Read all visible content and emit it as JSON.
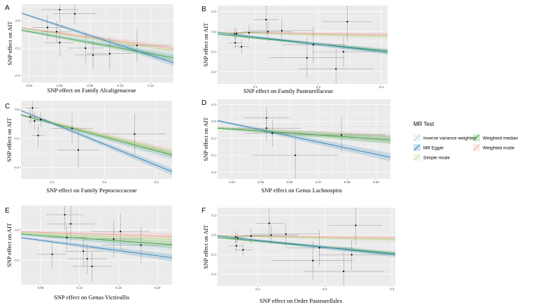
{
  "legend": {
    "title": "MR Test",
    "entries": [
      {
        "key": "ivw",
        "label": "Inverse variance weighted",
        "color": "#a6cee3"
      },
      {
        "key": "egger",
        "label": "MR Egger",
        "color": "#1f78b4"
      },
      {
        "key": "simple",
        "label": "Simple mode",
        "color": "#b2df8a"
      },
      {
        "key": "wmedian",
        "label": "Weighted median",
        "color": "#33a02c"
      },
      {
        "key": "wmode",
        "label": "Weighted mode",
        "color": "#fb9a99"
      }
    ]
  },
  "chart_data": [
    {
      "panel": "A",
      "type": "scatter",
      "xlabel": "SNP effect on Family Alcaligenaceae",
      "ylabel": "SNP effect on AIT",
      "xlim": [
        0.035,
        0.135
      ],
      "ylim": [
        -0.45,
        0.12
      ],
      "xticks": [
        0.04,
        0.06,
        0.08,
        0.1,
        0.12
      ],
      "xtick_labels": [
        "0.04",
        "0.06",
        "0.08",
        "0.10",
        "0.12"
      ],
      "yticks": [
        0.0,
        -0.2,
        -0.4
      ],
      "ytick_labels": [
        "0.0",
        "-0.2",
        "-0.4"
      ],
      "points": [
        {
          "x": 0.06,
          "y": 0.08,
          "xerr": 0.012,
          "yerr": 0.1
        },
        {
          "x": 0.07,
          "y": 0.05,
          "xerr": 0.014,
          "yerr": 0.08
        },
        {
          "x": 0.052,
          "y": -0.05,
          "xerr": 0.01,
          "yerr": 0.09
        },
        {
          "x": 0.058,
          "y": -0.08,
          "xerr": 0.01,
          "yerr": 0.08
        },
        {
          "x": 0.06,
          "y": -0.16,
          "xerr": 0.01,
          "yerr": 0.1
        },
        {
          "x": 0.077,
          "y": -0.2,
          "xerr": 0.012,
          "yerr": 0.11
        },
        {
          "x": 0.082,
          "y": -0.25,
          "xerr": 0.012,
          "yerr": 0.1
        },
        {
          "x": 0.093,
          "y": -0.24,
          "xerr": 0.015,
          "yerr": 0.12
        },
        {
          "x": 0.111,
          "y": -0.18,
          "xerr": 0.022,
          "yerr": 0.12
        }
      ],
      "lines": {
        "ivw": [
          0.0,
          -1.9
        ],
        "egger": [
          0.18,
          -3.6
        ],
        "simple": [
          0.0,
          -1.6
        ],
        "wmedian": [
          0.0,
          -2.0
        ],
        "wmode": [
          0.0,
          -1.5
        ]
      }
    },
    {
      "panel": "B",
      "type": "scatter",
      "xlabel": "SNP effect on Family Pasteurellaceae",
      "ylabel": "SNP effect on AIT",
      "xlim": [
        0.04,
        0.31
      ],
      "ylim": [
        -0.52,
        0.26
      ],
      "xticks": [
        0.1,
        0.2,
        0.3
      ],
      "xtick_labels": [
        "0.1",
        "0.2",
        "0.3"
      ],
      "yticks": [
        0.2,
        0.0,
        -0.2,
        -0.4
      ],
      "ytick_labels": [
        "0.2",
        "0.0",
        "-0.2",
        "-0.4"
      ],
      "points": [
        {
          "x": 0.067,
          "y": -0.02,
          "xerr": 0.012,
          "yerr": 0.06
        },
        {
          "x": 0.07,
          "y": -0.02,
          "xerr": 0.01,
          "yerr": 0.05
        },
        {
          "x": 0.068,
          "y": -0.11,
          "xerr": 0.01,
          "yerr": 0.06
        },
        {
          "x": 0.078,
          "y": -0.15,
          "xerr": 0.012,
          "yerr": 0.07
        },
        {
          "x": 0.09,
          "y": -0.01,
          "xerr": 0.02,
          "yerr": 0.08
        },
        {
          "x": 0.117,
          "y": 0.12,
          "xerr": 0.02,
          "yerr": 0.15
        },
        {
          "x": 0.12,
          "y": 0.0,
          "xerr": 0.04,
          "yerr": 0.1
        },
        {
          "x": 0.142,
          "y": 0.01,
          "xerr": 0.05,
          "yerr": 0.12
        },
        {
          "x": 0.182,
          "y": -0.26,
          "xerr": 0.06,
          "yerr": 0.2
        },
        {
          "x": 0.192,
          "y": -0.13,
          "xerr": 0.05,
          "yerr": 0.18
        },
        {
          "x": 0.228,
          "y": -0.37,
          "xerr": 0.06,
          "yerr": 0.2
        },
        {
          "x": 0.24,
          "y": -0.2,
          "xerr": 0.05,
          "yerr": 0.15
        },
        {
          "x": 0.246,
          "y": 0.1,
          "xerr": 0.04,
          "yerr": 0.2
        }
      ],
      "lines": {
        "ivw": [
          0.0,
          -0.65
        ],
        "egger": [
          0.02,
          -0.72
        ],
        "simple": [
          0.0,
          -0.15
        ],
        "wmedian": [
          0.0,
          -0.62
        ],
        "wmode": [
          0.0,
          -0.1
        ]
      }
    },
    {
      "panel": "C",
      "type": "scatter",
      "xlabel": "SNP effect on Family Peptococcaceae",
      "ylabel": "SNP effect on AIT",
      "xlim": [
        0.04,
        0.33
      ],
      "ylim": [
        -0.48,
        0.06
      ],
      "xticks": [
        0.1,
        0.2,
        0.3
      ],
      "xtick_labels": [
        "0.1",
        "0.2",
        "0.3"
      ],
      "yticks": [
        0.0,
        -0.2,
        -0.4
      ],
      "ytick_labels": [
        "0.0",
        "-0.2",
        "-0.4"
      ],
      "points": [
        {
          "x": 0.062,
          "y": 0.01,
          "xerr": 0.012,
          "yerr": 0.05
        },
        {
          "x": 0.058,
          "y": -0.05,
          "xerr": 0.01,
          "yerr": 0.05
        },
        {
          "x": 0.066,
          "y": -0.08,
          "xerr": 0.012,
          "yerr": 0.06
        },
        {
          "x": 0.078,
          "y": -0.07,
          "xerr": 0.012,
          "yerr": 0.05
        },
        {
          "x": 0.073,
          "y": -0.18,
          "xerr": 0.012,
          "yerr": 0.08
        },
        {
          "x": 0.138,
          "y": -0.13,
          "xerr": 0.04,
          "yerr": 0.1
        },
        {
          "x": 0.15,
          "y": -0.28,
          "xerr": 0.04,
          "yerr": 0.13
        },
        {
          "x": 0.258,
          "y": -0.17,
          "xerr": 0.06,
          "yerr": 0.14
        }
      ],
      "lines": {
        "ivw": [
          0.0,
          -1.0
        ],
        "egger": [
          0.05,
          -1.45
        ],
        "simple": [
          0.0,
          -0.9
        ],
        "wmedian": [
          0.0,
          -0.95
        ],
        "wmode": [
          0.0,
          -0.9
        ]
      }
    },
    {
      "panel": "D",
      "type": "scatter",
      "xlabel": "SNP effect on Genus Lachnospira",
      "ylabel": "SNP effect on AIT",
      "xlim": [
        0.035,
        0.095
      ],
      "ylim": [
        -0.34,
        0.13
      ],
      "xticks": [
        0.04,
        0.05,
        0.06,
        0.07,
        0.08,
        0.09
      ],
      "xtick_labels": [
        "0.04",
        "0.05",
        "0.06",
        "0.07",
        "0.08",
        "0.09"
      ],
      "yticks": [
        0.1,
        0.0,
        -0.1,
        -0.2,
        -0.3
      ],
      "ytick_labels": [
        "0.1",
        "0.0",
        "-0.1",
        "-0.2",
        "-0.3"
      ],
      "points": [
        {
          "x": 0.052,
          "y": 0.02,
          "xerr": 0.008,
          "yerr": 0.07
        },
        {
          "x": 0.052,
          "y": -0.04,
          "xerr": 0.012,
          "yerr": 0.08
        },
        {
          "x": 0.054,
          "y": -0.07,
          "xerr": 0.01,
          "yerr": 0.08
        },
        {
          "x": 0.062,
          "y": -0.2,
          "xerr": 0.015,
          "yerr": 0.14
        },
        {
          "x": 0.078,
          "y": -0.08,
          "xerr": 0.015,
          "yerr": 0.1
        }
      ],
      "lines": {
        "ivw": [
          0.0,
          -1.1
        ],
        "egger": [
          0.13,
          -3.6
        ],
        "simple": [
          0.0,
          -1.05
        ],
        "wmedian": [
          0.0,
          -1.15
        ],
        "wmode": [
          0.0,
          -1.05
        ]
      }
    },
    {
      "panel": "E",
      "type": "scatter",
      "xlabel": "SNP effect on Genus Victivallis",
      "ylabel": "SNP effect on AIT",
      "xlim": [
        0.06,
        0.215
      ],
      "ylim": [
        -0.36,
        0.16
      ],
      "xticks": [
        0.08,
        0.12,
        0.16,
        0.2
      ],
      "xtick_labels": [
        "0.08",
        "0.12",
        "0.16",
        "0.20"
      ],
      "yticks": [
        0.0,
        -0.2
      ],
      "ytick_labels": [
        "0.0",
        "-0.2"
      ],
      "points": [
        {
          "x": 0.105,
          "y": 0.1,
          "xerr": 0.02,
          "yerr": 0.1
        },
        {
          "x": 0.111,
          "y": 0.04,
          "xerr": 0.025,
          "yerr": 0.12
        },
        {
          "x": 0.107,
          "y": -0.05,
          "xerr": 0.02,
          "yerr": 0.08
        },
        {
          "x": 0.092,
          "y": -0.16,
          "xerr": 0.015,
          "yerr": 0.09
        },
        {
          "x": 0.124,
          "y": -0.14,
          "xerr": 0.02,
          "yerr": 0.1
        },
        {
          "x": 0.128,
          "y": -0.19,
          "xerr": 0.02,
          "yerr": 0.1
        },
        {
          "x": 0.133,
          "y": -0.24,
          "xerr": 0.02,
          "yerr": 0.1
        },
        {
          "x": 0.155,
          "y": -0.06,
          "xerr": 0.03,
          "yerr": 0.12
        },
        {
          "x": 0.162,
          "y": -0.01,
          "xerr": 0.03,
          "yerr": 0.12
        },
        {
          "x": 0.183,
          "y": -0.1,
          "xerr": 0.04,
          "yerr": 0.12
        }
      ],
      "lines": {
        "ivw": [
          0.0,
          -0.55
        ],
        "egger": [
          0.0,
          -0.85
        ],
        "simple": [
          0.0,
          -0.3
        ],
        "wmedian": [
          0.0,
          -0.45
        ],
        "wmode": [
          0.0,
          -0.2
        ]
      }
    },
    {
      "panel": "F",
      "type": "scatter",
      "xlabel": "SNP effect on Order Pasteurellales",
      "ylabel": "SNP effect on AIT",
      "xlim": [
        0.04,
        0.305
      ],
      "ylim": [
        -0.52,
        0.28
      ],
      "xticks": [
        0.1,
        0.2,
        0.3
      ],
      "xtick_labels": [
        "0.1",
        "0.2",
        "0.3"
      ],
      "yticks": [
        0.2,
        0.0,
        -0.2,
        -0.4
      ],
      "ytick_labels": [
        "0.2",
        "0.0",
        "-0.2",
        "-0.4"
      ],
      "points": [
        {
          "x": 0.067,
          "y": -0.02,
          "xerr": 0.012,
          "yerr": 0.06
        },
        {
          "x": 0.07,
          "y": -0.03,
          "xerr": 0.01,
          "yerr": 0.05
        },
        {
          "x": 0.068,
          "y": -0.11,
          "xerr": 0.01,
          "yerr": 0.06
        },
        {
          "x": 0.078,
          "y": -0.15,
          "xerr": 0.012,
          "yerr": 0.07
        },
        {
          "x": 0.09,
          "y": -0.01,
          "xerr": 0.02,
          "yerr": 0.08
        },
        {
          "x": 0.117,
          "y": 0.12,
          "xerr": 0.02,
          "yerr": 0.15
        },
        {
          "x": 0.12,
          "y": 0.0,
          "xerr": 0.04,
          "yerr": 0.1
        },
        {
          "x": 0.142,
          "y": 0.01,
          "xerr": 0.05,
          "yerr": 0.12
        },
        {
          "x": 0.182,
          "y": -0.26,
          "xerr": 0.06,
          "yerr": 0.2
        },
        {
          "x": 0.192,
          "y": -0.13,
          "xerr": 0.05,
          "yerr": 0.18
        },
        {
          "x": 0.228,
          "y": -0.37,
          "xerr": 0.06,
          "yerr": 0.2
        },
        {
          "x": 0.24,
          "y": -0.2,
          "xerr": 0.05,
          "yerr": 0.15
        },
        {
          "x": 0.246,
          "y": 0.1,
          "xerr": 0.04,
          "yerr": 0.2
        }
      ],
      "lines": {
        "ivw": [
          0.0,
          -0.65
        ],
        "egger": [
          0.02,
          -0.72
        ],
        "simple": [
          0.0,
          -0.15
        ],
        "wmedian": [
          0.0,
          -0.62
        ],
        "wmode": [
          0.0,
          -0.1
        ]
      }
    }
  ]
}
